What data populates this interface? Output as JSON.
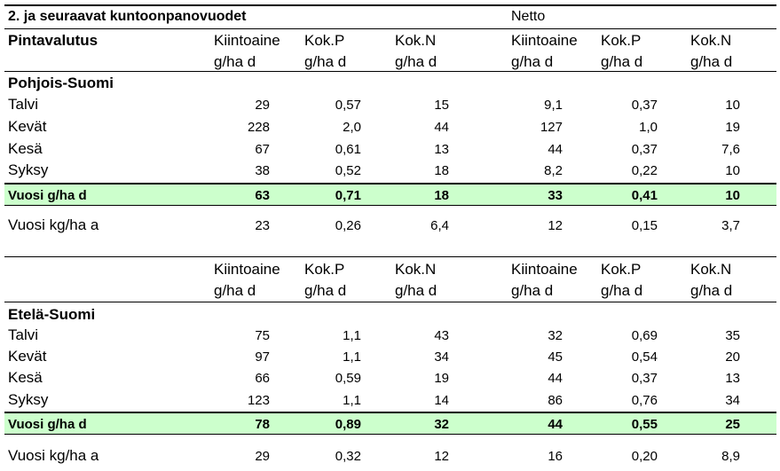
{
  "title": "2. ja seuraavat kuntoonpanovuodet",
  "netto_label": "Netto",
  "pintavalutus_label": "Pintavalutus",
  "columns": [
    {
      "label": "Kiintoaine",
      "unit": "g/ha d"
    },
    {
      "label": "Kok.P",
      "unit": "g/ha d"
    },
    {
      "label": "Kok.N",
      "unit": "g/ha d"
    },
    {
      "label": "Kiintoaine",
      "unit": "g/ha d"
    },
    {
      "label": "Kok.P",
      "unit": "g/ha d"
    },
    {
      "label": "Kok.N",
      "unit": "g/ha d"
    }
  ],
  "sections": [
    {
      "region": "Pohjois-Suomi",
      "rows": [
        {
          "label": "Talvi",
          "values": [
            "29",
            "0,57",
            "15",
            "9,1",
            "0,37",
            "10"
          ]
        },
        {
          "label": "Kevät",
          "values": [
            "228",
            "2,0",
            "44",
            "127",
            "1,0",
            "19"
          ]
        },
        {
          "label": "Kesä",
          "values": [
            "67",
            "0,61",
            "13",
            "44",
            "0,37",
            "7,6"
          ]
        },
        {
          "label": "Syksy",
          "values": [
            "38",
            "0,52",
            "18",
            "8,2",
            "0,22",
            "10"
          ]
        }
      ],
      "total": {
        "label": "Vuosi g/ha d",
        "values": [
          "63",
          "0,71",
          "18",
          "33",
          "0,41",
          "10"
        ]
      },
      "annual": {
        "label": "Vuosi kg/ha a",
        "values": [
          "23",
          "0,26",
          "6,4",
          "12",
          "0,15",
          "3,7"
        ]
      }
    },
    {
      "region": "Etelä-Suomi",
      "rows": [
        {
          "label": "Talvi",
          "values": [
            "75",
            "1,1",
            "43",
            "32",
            "0,69",
            "35"
          ]
        },
        {
          "label": "Kevät",
          "values": [
            "97",
            "1,1",
            "34",
            "45",
            "0,54",
            "20"
          ]
        },
        {
          "label": "Kesä",
          "values": [
            "66",
            "0,59",
            "19",
            "44",
            "0,37",
            "13"
          ]
        },
        {
          "label": "Syksy",
          "values": [
            "123",
            "1,1",
            "14",
            "86",
            "0,76",
            "34"
          ]
        }
      ],
      "total": {
        "label": "Vuosi g/ha d",
        "values": [
          "78",
          "0,89",
          "32",
          "44",
          "0,55",
          "25"
        ]
      },
      "annual": {
        "label": "Vuosi kg/ha a",
        "values": [
          "29",
          "0,32",
          "12",
          "16",
          "0,20",
          "8,9"
        ]
      }
    }
  ]
}
